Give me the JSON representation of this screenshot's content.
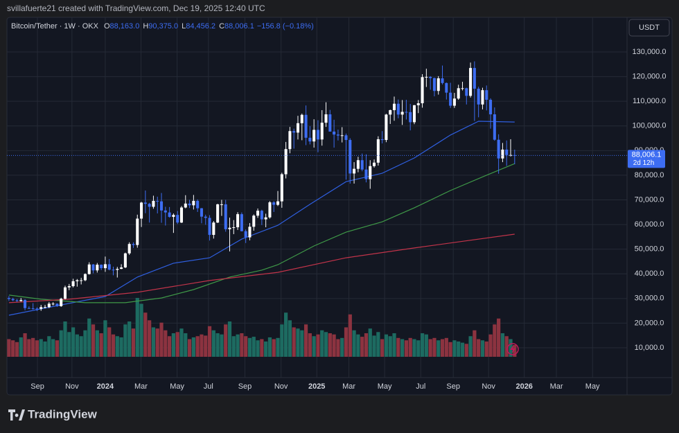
{
  "header": {
    "credit": "svillafuerte21 created with TradingView.com, Dec 19, 2025 12:40 UTC",
    "symbol": "Bitcoin/Tether · 1W · OKX",
    "ohlc": [
      {
        "key": "O",
        "value": "88,163.0"
      },
      {
        "key": "H",
        "value": "90,375.0"
      },
      {
        "key": "L",
        "value": "84,456.2"
      },
      {
        "key": "C",
        "value": "88,006.1"
      }
    ],
    "change": "−156.8 (−0.18%)",
    "currency": "USDT"
  },
  "price_label": {
    "price": "88,006.1",
    "countdown": "2d 12h"
  },
  "footer": {
    "logo": "TradingView"
  },
  "chart_data": {
    "type": "candlestick",
    "xlim": [
      -0.5,
      154
    ],
    "xticks": [
      {
        "value": 7.1,
        "label": "Sep"
      },
      {
        "value": 15.7,
        "label": "Nov"
      },
      {
        "value": 24.0,
        "label": "2024"
      },
      {
        "value": 32.9,
        "label": "Mar"
      },
      {
        "value": 41.9,
        "label": "May"
      },
      {
        "value": 49.7,
        "label": "Jul"
      },
      {
        "value": 58.8,
        "label": "Sep"
      },
      {
        "value": 67.8,
        "label": "Nov"
      },
      {
        "value": 76.7,
        "label": "2025"
      },
      {
        "value": 84.7,
        "label": "Mar"
      },
      {
        "value": 93.6,
        "label": "May"
      },
      {
        "value": 102.6,
        "label": "Jul"
      },
      {
        "value": 110.7,
        "label": "Sep"
      },
      {
        "value": 119.5,
        "label": "Nov"
      },
      {
        "value": 128.4,
        "label": "2026"
      },
      {
        "value": 136.4,
        "label": "Mar"
      },
      {
        "value": 145.4,
        "label": "May"
      }
    ],
    "ylim": [
      -2085,
      144053
    ],
    "yticks": [
      {
        "value": 10000,
        "label": "10,000.0"
      },
      {
        "value": 20000,
        "label": "20,000.0"
      },
      {
        "value": 30000,
        "label": "30,000.0"
      },
      {
        "value": 40000,
        "label": "40,000.0"
      },
      {
        "value": 50000,
        "label": "50,000.0"
      },
      {
        "value": 60000,
        "label": "60,000.0"
      },
      {
        "value": 70000,
        "label": "70,000.0"
      },
      {
        "value": 80000,
        "label": "80,000.0"
      },
      {
        "value": 90000,
        "label": "90,000.0"
      },
      {
        "value": 100000,
        "label": "100,000.0"
      },
      {
        "value": 110000,
        "label": "110,000.0"
      },
      {
        "value": 120000,
        "label": "120,000.0"
      },
      {
        "value": 130000,
        "label": "130,000.0"
      }
    ],
    "grid": true,
    "up_color": "#ffffff",
    "down_color": "#3d6df2",
    "volume_up_color": "#1d6b61",
    "volume_down_color": "#8c3340",
    "candles": {
      "open": [
        30200,
        29800,
        29300,
        29000,
        29400,
        26100,
        26000,
        25900,
        25800,
        26500,
        26500,
        27900,
        27900,
        26900,
        29900,
        34500,
        35000,
        37000,
        37400,
        37400,
        39900,
        43800,
        41400,
        43700,
        42300,
        43900,
        41700,
        41600,
        42000,
        42600,
        48300,
        52100,
        51700,
        62400,
        68900,
        68400,
        67200,
        69600,
        69400,
        65700,
        64900,
        63100,
        63900,
        60800,
        66900,
        68500,
        67800,
        69600,
        66600,
        63200,
        62700,
        55800,
        60800,
        68200,
        68200,
        58100,
        58700,
        58900,
        64200,
        57300,
        54800,
        59100,
        63600,
        65600,
        62100,
        62900,
        69000,
        68000,
        69400,
        80400,
        90600,
        97900,
        97300,
        101100,
        104500,
        95200,
        93700,
        98400,
        94500,
        101300,
        104700,
        97700,
        96500,
        96100,
        96200,
        94300,
        80700,
        82600,
        86100,
        82300,
        78400,
        83700,
        85100,
        94600,
        94300,
        104600,
        106400,
        109000,
        104600,
        105700,
        105600,
        101500,
        108400,
        109200,
        119800,
        119900,
        119400,
        114200,
        119300,
        117400,
        113500,
        108200,
        111100,
        115300,
        115300,
        112200,
        123500,
        115100,
        108700,
        114500,
        110600,
        104700,
        94400,
        86800,
        90400,
        88200,
        88163.0
      ],
      "high": [
        31000,
        30300,
        29800,
        30200,
        29700,
        26800,
        28100,
        26400,
        27400,
        27400,
        28600,
        28500,
        28000,
        30300,
        35200,
        35900,
        38000,
        37900,
        38400,
        40200,
        44700,
        44000,
        44400,
        43800,
        47000,
        46000,
        42900,
        42800,
        43900,
        48600,
        52800,
        52800,
        64000,
        69200,
        73800,
        68800,
        71700,
        71300,
        72800,
        67200,
        67100,
        64500,
        65500,
        67500,
        71900,
        70000,
        72000,
        70200,
        66700,
        64000,
        63800,
        61400,
        68400,
        70000,
        70000,
        62800,
        61800,
        65000,
        64900,
        58000,
        60600,
        64100,
        66500,
        66000,
        64400,
        69500,
        69500,
        73600,
        81000,
        93500,
        99600,
        98900,
        104100,
        105000,
        108300,
        99900,
        102700,
        102300,
        106400,
        109600,
        106500,
        102500,
        98500,
        99500,
        96900,
        95000,
        85300,
        87500,
        88800,
        88500,
        86100,
        86400,
        95800,
        97900,
        104900,
        106600,
        111900,
        110700,
        110500,
        110600,
        108900,
        108500,
        110500,
        121000,
        123200,
        120200,
        119600,
        120200,
        124500,
        117600,
        117500,
        113400,
        116700,
        117900,
        115500,
        125700,
        126200,
        115900,
        115500,
        116400,
        111200,
        107500,
        96600,
        93100,
        94100,
        94600,
        90375.0
      ],
      "low": [
        29000,
        28900,
        28600,
        28700,
        25200,
        25800,
        25500,
        24900,
        25000,
        26000,
        26100,
        27200,
        26600,
        26600,
        29600,
        33400,
        34500,
        34800,
        35700,
        37000,
        39700,
        40200,
        40500,
        41500,
        40800,
        41400,
        39400,
        38500,
        41900,
        42300,
        47700,
        50500,
        50600,
        59000,
        64600,
        60800,
        66400,
        64500,
        60700,
        59600,
        62800,
        56600,
        60200,
        60600,
        66600,
        66700,
        66100,
        65100,
        60500,
        59900,
        53500,
        54300,
        60600,
        63500,
        57100,
        49100,
        56100,
        57800,
        57200,
        52500,
        53600,
        57500,
        62700,
        59800,
        58900,
        62400,
        65100,
        67500,
        66800,
        78700,
        88900,
        90800,
        94500,
        94200,
        92200,
        92500,
        91200,
        89300,
        92000,
        99600,
        97700,
        91200,
        94100,
        93300,
        78200,
        76600,
        76600,
        81200,
        81600,
        77100,
        74500,
        83100,
        83900,
        92900,
        93400,
        100800,
        102100,
        103100,
        100400,
        102600,
        98200,
        100700,
        105200,
        107400,
        115800,
        114700,
        112000,
        112700,
        116800,
        110700,
        107300,
        107300,
        110600,
        114400,
        108700,
        111500,
        102000,
        103500,
        106700,
        106300,
        98900,
        94000,
        80600,
        85300,
        83800,
        87600,
        84456.2
      ],
      "close": [
        29800,
        29300,
        29000,
        29400,
        26100,
        26000,
        25900,
        25800,
        26500,
        26500,
        27900,
        27900,
        26900,
        29900,
        34500,
        35000,
        37000,
        37400,
        37400,
        39900,
        43800,
        41400,
        43700,
        42300,
        43900,
        41700,
        41600,
        42000,
        42600,
        48300,
        52100,
        51700,
        62400,
        68900,
        68400,
        67200,
        69600,
        69400,
        65700,
        64900,
        63100,
        63900,
        60800,
        66900,
        68500,
        67800,
        69600,
        66600,
        63200,
        62700,
        55800,
        60800,
        68200,
        68200,
        58100,
        58700,
        58900,
        64200,
        57300,
        54800,
        59100,
        63600,
        65600,
        62100,
        62900,
        69000,
        68000,
        69400,
        80400,
        90600,
        97900,
        97300,
        101100,
        104500,
        95200,
        93700,
        98400,
        94500,
        101300,
        104700,
        97700,
        96500,
        96100,
        96200,
        94300,
        80700,
        82600,
        86100,
        82300,
        78400,
        83700,
        85100,
        94600,
        94300,
        104600,
        106400,
        109000,
        104600,
        105700,
        105600,
        101500,
        108400,
        109200,
        119800,
        119900,
        119400,
        114200,
        119300,
        117400,
        113500,
        108200,
        111100,
        115300,
        115300,
        112200,
        123500,
        115100,
        108700,
        114500,
        110600,
        104700,
        94400,
        86800,
        90400,
        88200,
        88200,
        88006.1
      ],
      "volume": [
        30,
        28,
        25,
        33,
        40,
        30,
        32,
        28,
        30,
        26,
        35,
        30,
        28,
        45,
        60,
        42,
        50,
        38,
        35,
        45,
        65,
        55,
        45,
        40,
        62,
        50,
        38,
        35,
        33,
        55,
        60,
        48,
        100,
        90,
        75,
        62,
        50,
        48,
        58,
        45,
        35,
        40,
        42,
        48,
        40,
        30,
        33,
        35,
        38,
        36,
        52,
        45,
        40,
        38,
        55,
        60,
        35,
        38,
        40,
        35,
        32,
        34,
        28,
        30,
        26,
        33,
        30,
        32,
        55,
        75,
        62,
        50,
        48,
        45,
        55,
        40,
        35,
        38,
        45,
        42,
        40,
        38,
        30,
        32,
        50,
        72,
        45,
        38,
        34,
        40,
        48,
        36,
        42,
        30,
        38,
        35,
        40,
        32,
        30,
        28,
        32,
        30,
        28,
        40,
        38,
        30,
        32,
        28,
        30,
        32,
        25,
        28,
        26,
        24,
        22,
        35,
        45,
        30,
        28,
        26,
        38,
        55,
        65,
        40,
        35,
        30,
        20
      ]
    },
    "series": [
      {
        "color": "#2f5fe0",
        "x": [
          0,
          13,
          24,
          32,
          41,
          50,
          58,
          67,
          75,
          84,
          93,
          101,
          110,
          117,
          126
        ],
        "values": [
          23200,
          27400,
          30800,
          38700,
          44300,
          46500,
          54100,
          59700,
          68200,
          77400,
          80800,
          87000,
          96300,
          101900,
          101600
        ]
      },
      {
        "color": "#3f9a48",
        "x": [
          0,
          8,
          19,
          29,
          38,
          46,
          55,
          63,
          67,
          76,
          84,
          93,
          101,
          110,
          119,
          126
        ],
        "values": [
          31400,
          29700,
          28300,
          28300,
          30200,
          33600,
          38700,
          41500,
          43700,
          51300,
          56900,
          61100,
          66800,
          73800,
          80000,
          84700
        ]
      },
      {
        "color": "#c3344a",
        "x": [
          0,
          15,
          32,
          50,
          67,
          84,
          101,
          126
        ],
        "values": [
          28300,
          29700,
          32500,
          37300,
          40600,
          46500,
          50500,
          56100
        ]
      }
    ]
  }
}
